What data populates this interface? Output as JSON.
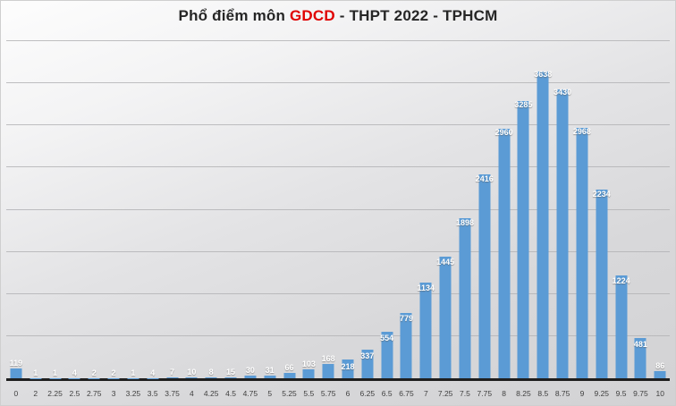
{
  "title": {
    "prefix": "Phổ điểm môn ",
    "subject": "GDCD",
    "suffix": " - THPT 2022 - TPHCM"
  },
  "colors": {
    "bar": "#5B9BD5",
    "subject_red": "#E00000",
    "title_text": "#262626",
    "data_label_text": "#FFFFFF",
    "axis_line": "#1F1F1F",
    "gridline": "#B4B4B6",
    "background": "#D8D8DA"
  },
  "chart_data": {
    "type": "bar",
    "title": "Phổ điểm môn GDCD - THPT 2022 - TPHCM",
    "xlabel": "",
    "ylabel": "",
    "ylim": [
      0,
      4000
    ],
    "gridline_step": 500,
    "grid": true,
    "legend_position": "none",
    "data_labels": true,
    "categories": [
      "0",
      "2",
      "2.25",
      "2.5",
      "2.75",
      "3",
      "3.25",
      "3.5",
      "3.75",
      "4",
      "4.25",
      "4.5",
      "4.75",
      "5",
      "5.25",
      "5.5",
      "5.75",
      "6",
      "6.25",
      "6.5",
      "6.75",
      "7",
      "7.25",
      "7.5",
      "7.75",
      "8",
      "8.25",
      "8.5",
      "8.75",
      "9",
      "9.25",
      "9.5",
      "9.75",
      "10"
    ],
    "values": [
      119,
      1,
      1,
      4,
      2,
      2,
      1,
      4,
      7,
      10,
      8,
      15,
      30,
      31,
      66,
      103,
      168,
      218,
      337,
      554,
      779,
      1134,
      1445,
      1898,
      2416,
      2960,
      3285,
      3638,
      3430,
      2968,
      2234,
      1224,
      481,
      86
    ]
  }
}
